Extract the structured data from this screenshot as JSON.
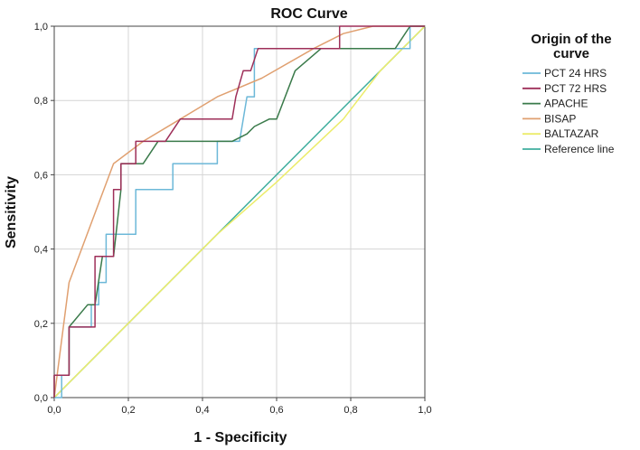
{
  "chart_data": {
    "type": "line",
    "title": "ROC Curve",
    "xlabel": "1 - Specificity",
    "ylabel": "Sensitivity",
    "xlim": [
      0,
      1
    ],
    "ylim": [
      0,
      1
    ],
    "grid": true,
    "xticks": [
      "0,0",
      "0,2",
      "0,4",
      "0,6",
      "0,8",
      "1,0"
    ],
    "yticks": [
      "0,0",
      "0,2",
      "0,4",
      "0,6",
      "0,8",
      "1,0"
    ],
    "tick_values": [
      0,
      0.2,
      0.4,
      0.6,
      0.8,
      1.0
    ],
    "legend": {
      "title_lines": [
        "Origin of the",
        "curve"
      ],
      "placement": "right"
    },
    "series": [
      {
        "name": "PCT 24 HRS",
        "color": "#6cb8d8",
        "points": [
          [
            0,
            0
          ],
          [
            0.02,
            0
          ],
          [
            0.02,
            0.06
          ],
          [
            0.04,
            0.06
          ],
          [
            0.04,
            0.19
          ],
          [
            0.1,
            0.19
          ],
          [
            0.1,
            0.25
          ],
          [
            0.12,
            0.25
          ],
          [
            0.12,
            0.31
          ],
          [
            0.14,
            0.31
          ],
          [
            0.14,
            0.44
          ],
          [
            0.22,
            0.44
          ],
          [
            0.22,
            0.56
          ],
          [
            0.32,
            0.56
          ],
          [
            0.32,
            0.63
          ],
          [
            0.44,
            0.63
          ],
          [
            0.44,
            0.69
          ],
          [
            0.5,
            0.69
          ],
          [
            0.52,
            0.81
          ],
          [
            0.54,
            0.81
          ],
          [
            0.54,
            0.94
          ],
          [
            0.96,
            0.94
          ],
          [
            0.96,
            1
          ],
          [
            1,
            1
          ]
        ]
      },
      {
        "name": "PCT 72 HRS",
        "color": "#9e2f59",
        "points": [
          [
            0,
            0
          ],
          [
            0,
            0.06
          ],
          [
            0.04,
            0.06
          ],
          [
            0.04,
            0.19
          ],
          [
            0.11,
            0.19
          ],
          [
            0.11,
            0.31
          ],
          [
            0.11,
            0.38
          ],
          [
            0.16,
            0.38
          ],
          [
            0.16,
            0.56
          ],
          [
            0.18,
            0.56
          ],
          [
            0.18,
            0.63
          ],
          [
            0.2,
            0.63
          ],
          [
            0.22,
            0.63
          ],
          [
            0.22,
            0.69
          ],
          [
            0.3,
            0.69
          ],
          [
            0.34,
            0.75
          ],
          [
            0.48,
            0.75
          ],
          [
            0.49,
            0.81
          ],
          [
            0.51,
            0.88
          ],
          [
            0.53,
            0.88
          ],
          [
            0.55,
            0.94
          ],
          [
            0.77,
            0.94
          ],
          [
            0.77,
            1
          ],
          [
            1,
            1
          ]
        ]
      },
      {
        "name": "APACHE",
        "color": "#3a7a4a",
        "points": [
          [
            0,
            0
          ],
          [
            0,
            0.06
          ],
          [
            0.04,
            0.06
          ],
          [
            0.04,
            0.19
          ],
          [
            0.09,
            0.25
          ],
          [
            0.11,
            0.25
          ],
          [
            0.13,
            0.38
          ],
          [
            0.16,
            0.38
          ],
          [
            0.18,
            0.56
          ],
          [
            0.18,
            0.63
          ],
          [
            0.24,
            0.63
          ],
          [
            0.28,
            0.69
          ],
          [
            0.38,
            0.69
          ],
          [
            0.48,
            0.69
          ],
          [
            0.52,
            0.71
          ],
          [
            0.54,
            0.73
          ],
          [
            0.58,
            0.75
          ],
          [
            0.6,
            0.75
          ],
          [
            0.65,
            0.88
          ],
          [
            0.72,
            0.94
          ],
          [
            0.92,
            0.94
          ],
          [
            0.96,
            1
          ],
          [
            1,
            1
          ]
        ]
      },
      {
        "name": "BISAP",
        "color": "#e0a070",
        "points": [
          [
            0,
            0
          ],
          [
            0.04,
            0.31
          ],
          [
            0.16,
            0.63
          ],
          [
            0.24,
            0.69
          ],
          [
            0.34,
            0.75
          ],
          [
            0.44,
            0.81
          ],
          [
            0.56,
            0.86
          ],
          [
            0.7,
            0.94
          ],
          [
            0.78,
            0.98
          ],
          [
            0.86,
            1
          ],
          [
            1,
            1
          ]
        ]
      },
      {
        "name": "BALTAZAR",
        "color": "#ecec6a",
        "points": [
          [
            0,
            0
          ],
          [
            0.44,
            0.44
          ],
          [
            0.6,
            0.58
          ],
          [
            0.78,
            0.75
          ],
          [
            0.88,
            0.88
          ],
          [
            0.96,
            0.96
          ],
          [
            1,
            1
          ]
        ]
      },
      {
        "name": "Reference line",
        "color": "#3fae9e",
        "points": [
          [
            0,
            0
          ],
          [
            1,
            1
          ]
        ]
      }
    ]
  }
}
